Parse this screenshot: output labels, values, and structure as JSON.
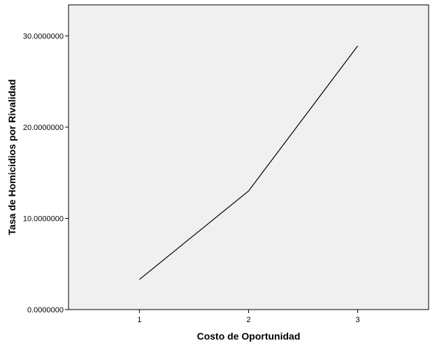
{
  "chart_data": {
    "type": "line",
    "title": "",
    "xlabel": "Costo de Oportunidad",
    "ylabel": "Tasa de Homicidios por Rivalidad",
    "categories": [
      "1",
      "2",
      "3"
    ],
    "x": [
      1,
      2,
      3
    ],
    "series": [
      {
        "values": [
          3.3,
          13.0,
          28.9
        ]
      }
    ],
    "xlim": [
      0.35,
      3.65
    ],
    "ylim": [
      0,
      33.4
    ],
    "yticks": [
      0,
      10,
      20,
      30
    ],
    "ytick_labels": [
      "0.0000000",
      "10.0000000",
      "20.0000000",
      "30.0000000"
    ],
    "xtick_labels": [
      "1",
      "2",
      "3"
    ],
    "grid": false,
    "legend": "none",
    "colors": {
      "plot_background": "#f0f0f0",
      "line": "#000000",
      "frame": "#000000"
    }
  }
}
